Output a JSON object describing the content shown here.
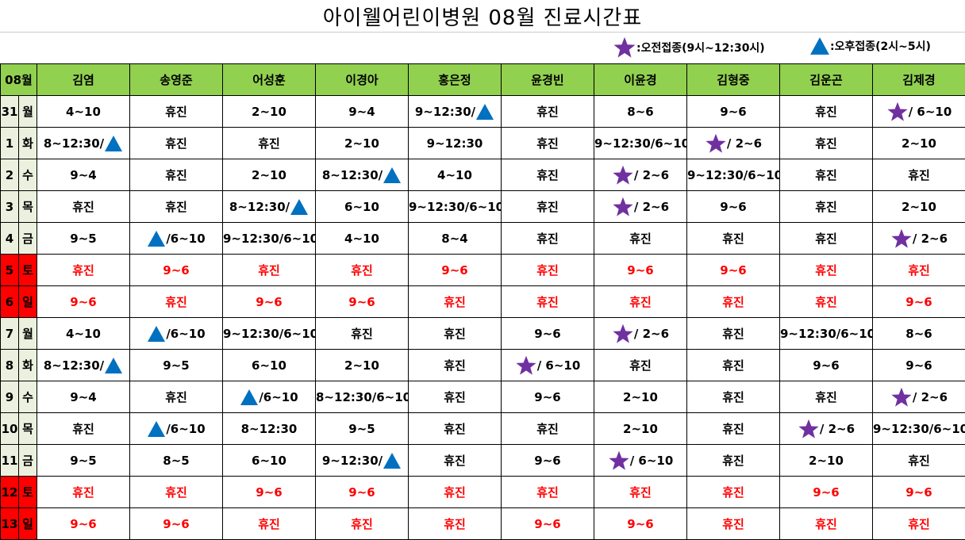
{
  "title": "아이웰어린이병원  08월  진료시간표",
  "legend": {
    "am": {
      "icon": "star-icon",
      "color": "#7030a0",
      "label": ":오전접종(9시~12:30시)"
    },
    "pm": {
      "icon": "triangle-icon",
      "color": "#0070c0",
      "label": ":오후접종(2시~5시)"
    }
  },
  "colors": {
    "header_bg": "#92d050",
    "weekend_bg": "#ff0000",
    "weekend_text": "#ff0000",
    "date_bg": "#ebf1de"
  },
  "month_label": "08월",
  "doctors": [
    "김염",
    "송영준",
    "어성훈",
    "이경아",
    "홍은정",
    "윤경빈",
    "이윤경",
    "김형중",
    "김운곤",
    "김제경"
  ],
  "rows": [
    {
      "date": "31",
      "day": "월",
      "weekend": false,
      "cells": [
        {
          "t": "4~10"
        },
        {
          "t": "휴진"
        },
        {
          "t": "2~10"
        },
        {
          "t": "9~4"
        },
        {
          "t": "9~12:30/",
          "post": "tri"
        },
        {
          "t": "휴진"
        },
        {
          "t": "8~6"
        },
        {
          "t": "9~6"
        },
        {
          "t": "휴진"
        },
        {
          "pre": "star",
          "t": "/ 6~10"
        }
      ]
    },
    {
      "date": "1",
      "day": "화",
      "weekend": false,
      "cells": [
        {
          "t": "8~12:30/",
          "post": "tri"
        },
        {
          "t": "휴진"
        },
        {
          "t": "휴진"
        },
        {
          "t": "2~10"
        },
        {
          "t": "9~12:30"
        },
        {
          "t": "휴진"
        },
        {
          "t": "9~12:30/6~10"
        },
        {
          "pre": "star",
          "t": "/ 2~6"
        },
        {
          "t": "휴진"
        },
        {
          "t": "2~10"
        }
      ]
    },
    {
      "date": "2",
      "day": "수",
      "weekend": false,
      "cells": [
        {
          "t": "9~4"
        },
        {
          "t": "휴진"
        },
        {
          "t": "2~10"
        },
        {
          "t": "8~12:30/",
          "post": "tri"
        },
        {
          "t": "4~10"
        },
        {
          "t": "휴진"
        },
        {
          "pre": "star",
          "t": "/ 2~6"
        },
        {
          "t": "9~12:30/6~10"
        },
        {
          "t": "휴진"
        },
        {
          "t": "휴진"
        }
      ]
    },
    {
      "date": "3",
      "day": "목",
      "weekend": false,
      "cells": [
        {
          "t": "휴진"
        },
        {
          "t": "휴진"
        },
        {
          "t": "8~12:30/",
          "post": "tri"
        },
        {
          "t": "6~10"
        },
        {
          "t": "9~12:30/6~10"
        },
        {
          "t": "휴진"
        },
        {
          "pre": "star",
          "t": "/ 2~6"
        },
        {
          "t": "9~6"
        },
        {
          "t": "휴진"
        },
        {
          "t": "2~10"
        }
      ]
    },
    {
      "date": "4",
      "day": "금",
      "weekend": false,
      "cells": [
        {
          "t": "9~5"
        },
        {
          "pre": "tri",
          "t": "/6~10"
        },
        {
          "t": "9~12:30/6~10"
        },
        {
          "t": "4~10"
        },
        {
          "t": "8~4"
        },
        {
          "t": "휴진"
        },
        {
          "t": "휴진"
        },
        {
          "t": "휴진"
        },
        {
          "t": "휴진"
        },
        {
          "pre": "star",
          "t": "/ 2~6"
        }
      ]
    },
    {
      "date": "5",
      "day": "토",
      "weekend": true,
      "cells": [
        {
          "t": "휴진"
        },
        {
          "t": "9~6"
        },
        {
          "t": "휴진"
        },
        {
          "t": "휴진"
        },
        {
          "t": "9~6"
        },
        {
          "t": "휴진"
        },
        {
          "t": "9~6"
        },
        {
          "t": "9~6"
        },
        {
          "t": "휴진"
        },
        {
          "t": "휴진"
        }
      ]
    },
    {
      "date": "6",
      "day": "일",
      "weekend": true,
      "cells": [
        {
          "t": "9~6"
        },
        {
          "t": "휴진"
        },
        {
          "t": "9~6"
        },
        {
          "t": "9~6"
        },
        {
          "t": "휴진"
        },
        {
          "t": "휴진"
        },
        {
          "t": "휴진"
        },
        {
          "t": "휴진"
        },
        {
          "t": "휴진"
        },
        {
          "t": "9~6"
        }
      ]
    },
    {
      "date": "7",
      "day": "월",
      "weekend": false,
      "cells": [
        {
          "t": "4~10"
        },
        {
          "pre": "tri",
          "t": "/6~10"
        },
        {
          "t": "9~12:30/6~10"
        },
        {
          "t": "휴진"
        },
        {
          "t": "휴진"
        },
        {
          "t": "9~6"
        },
        {
          "pre": "star",
          "t": "/ 2~6"
        },
        {
          "t": "휴진"
        },
        {
          "t": "9~12:30/6~10"
        },
        {
          "t": "8~6"
        }
      ]
    },
    {
      "date": "8",
      "day": "화",
      "weekend": false,
      "cells": [
        {
          "t": "8~12:30/",
          "post": "tri"
        },
        {
          "t": "9~5"
        },
        {
          "t": "6~10"
        },
        {
          "t": "2~10"
        },
        {
          "t": "휴진"
        },
        {
          "pre": "star",
          "t": "/ 6~10"
        },
        {
          "t": "휴진"
        },
        {
          "t": "휴진"
        },
        {
          "t": "9~6"
        },
        {
          "t": "9~6"
        }
      ]
    },
    {
      "date": "9",
      "day": "수",
      "weekend": false,
      "cells": [
        {
          "t": "9~4"
        },
        {
          "t": "휴진"
        },
        {
          "pre": "tri",
          "t": "/6~10"
        },
        {
          "t": "8~12:30/6~10"
        },
        {
          "t": "휴진"
        },
        {
          "t": "9~6"
        },
        {
          "t": "2~10"
        },
        {
          "t": "휴진"
        },
        {
          "t": "휴진"
        },
        {
          "pre": "star",
          "t": "/ 2~6"
        }
      ]
    },
    {
      "date": "10",
      "day": "목",
      "weekend": false,
      "cells": [
        {
          "t": "휴진"
        },
        {
          "pre": "tri",
          "t": "/6~10"
        },
        {
          "t": "8~12:30"
        },
        {
          "t": "9~5"
        },
        {
          "t": "휴진"
        },
        {
          "t": "휴진"
        },
        {
          "t": "2~10"
        },
        {
          "t": "휴진"
        },
        {
          "pre": "star",
          "t": "/ 2~6"
        },
        {
          "t": "9~12:30/6~10"
        }
      ]
    },
    {
      "date": "11",
      "day": "금",
      "weekend": false,
      "cells": [
        {
          "t": "9~5"
        },
        {
          "t": "8~5"
        },
        {
          "t": "6~10"
        },
        {
          "t": "9~12:30/",
          "post": "tri"
        },
        {
          "t": "휴진"
        },
        {
          "t": "9~6"
        },
        {
          "pre": "star",
          "t": "/ 6~10"
        },
        {
          "t": "휴진"
        },
        {
          "t": "2~10"
        },
        {
          "t": "휴진"
        }
      ]
    },
    {
      "date": "12",
      "day": "토",
      "weekend": true,
      "cells": [
        {
          "t": "휴진"
        },
        {
          "t": "휴진"
        },
        {
          "t": "9~6"
        },
        {
          "t": "9~6"
        },
        {
          "t": "휴진"
        },
        {
          "t": "휴진"
        },
        {
          "t": "휴진"
        },
        {
          "t": "휴진"
        },
        {
          "t": "9~6"
        },
        {
          "t": "9~6"
        }
      ]
    },
    {
      "date": "13",
      "day": "일",
      "weekend": true,
      "cells": [
        {
          "t": "9~6"
        },
        {
          "t": "9~6"
        },
        {
          "t": "휴진"
        },
        {
          "t": "휴진"
        },
        {
          "t": "휴진"
        },
        {
          "t": "9~6"
        },
        {
          "t": "9~6"
        },
        {
          "t": "휴진"
        },
        {
          "t": "휴진"
        },
        {
          "t": "휴진"
        }
      ]
    }
  ]
}
